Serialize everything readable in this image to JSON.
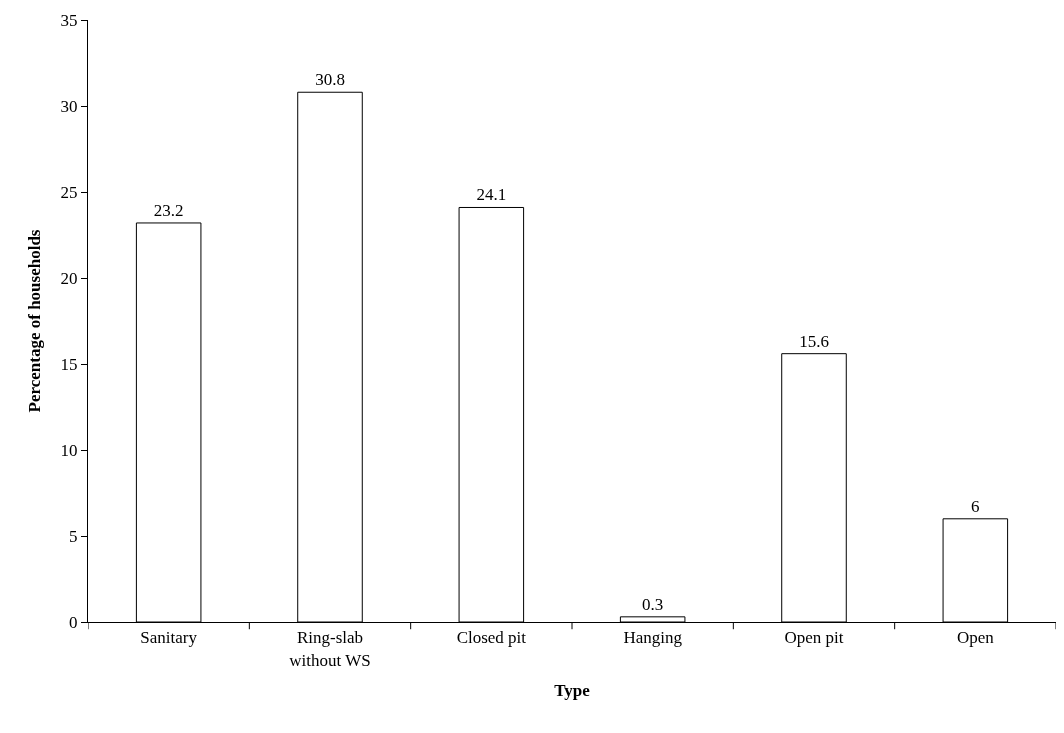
{
  "chart_data": {
    "type": "bar",
    "categories": [
      "Sanitary",
      "Ring-slab without WS",
      "Closed pit",
      "Hanging",
      "Open pit",
      "Open"
    ],
    "values": [
      23.2,
      30.8,
      24.1,
      0.3,
      15.6,
      6
    ],
    "color": "#ffffff",
    "xlabel": "Type",
    "ylabel": "Percentage of households",
    "ylim": [
      0,
      35
    ],
    "yticks": [
      0,
      5,
      10,
      15,
      20,
      25,
      30,
      35
    ],
    "data_labels": true
  }
}
